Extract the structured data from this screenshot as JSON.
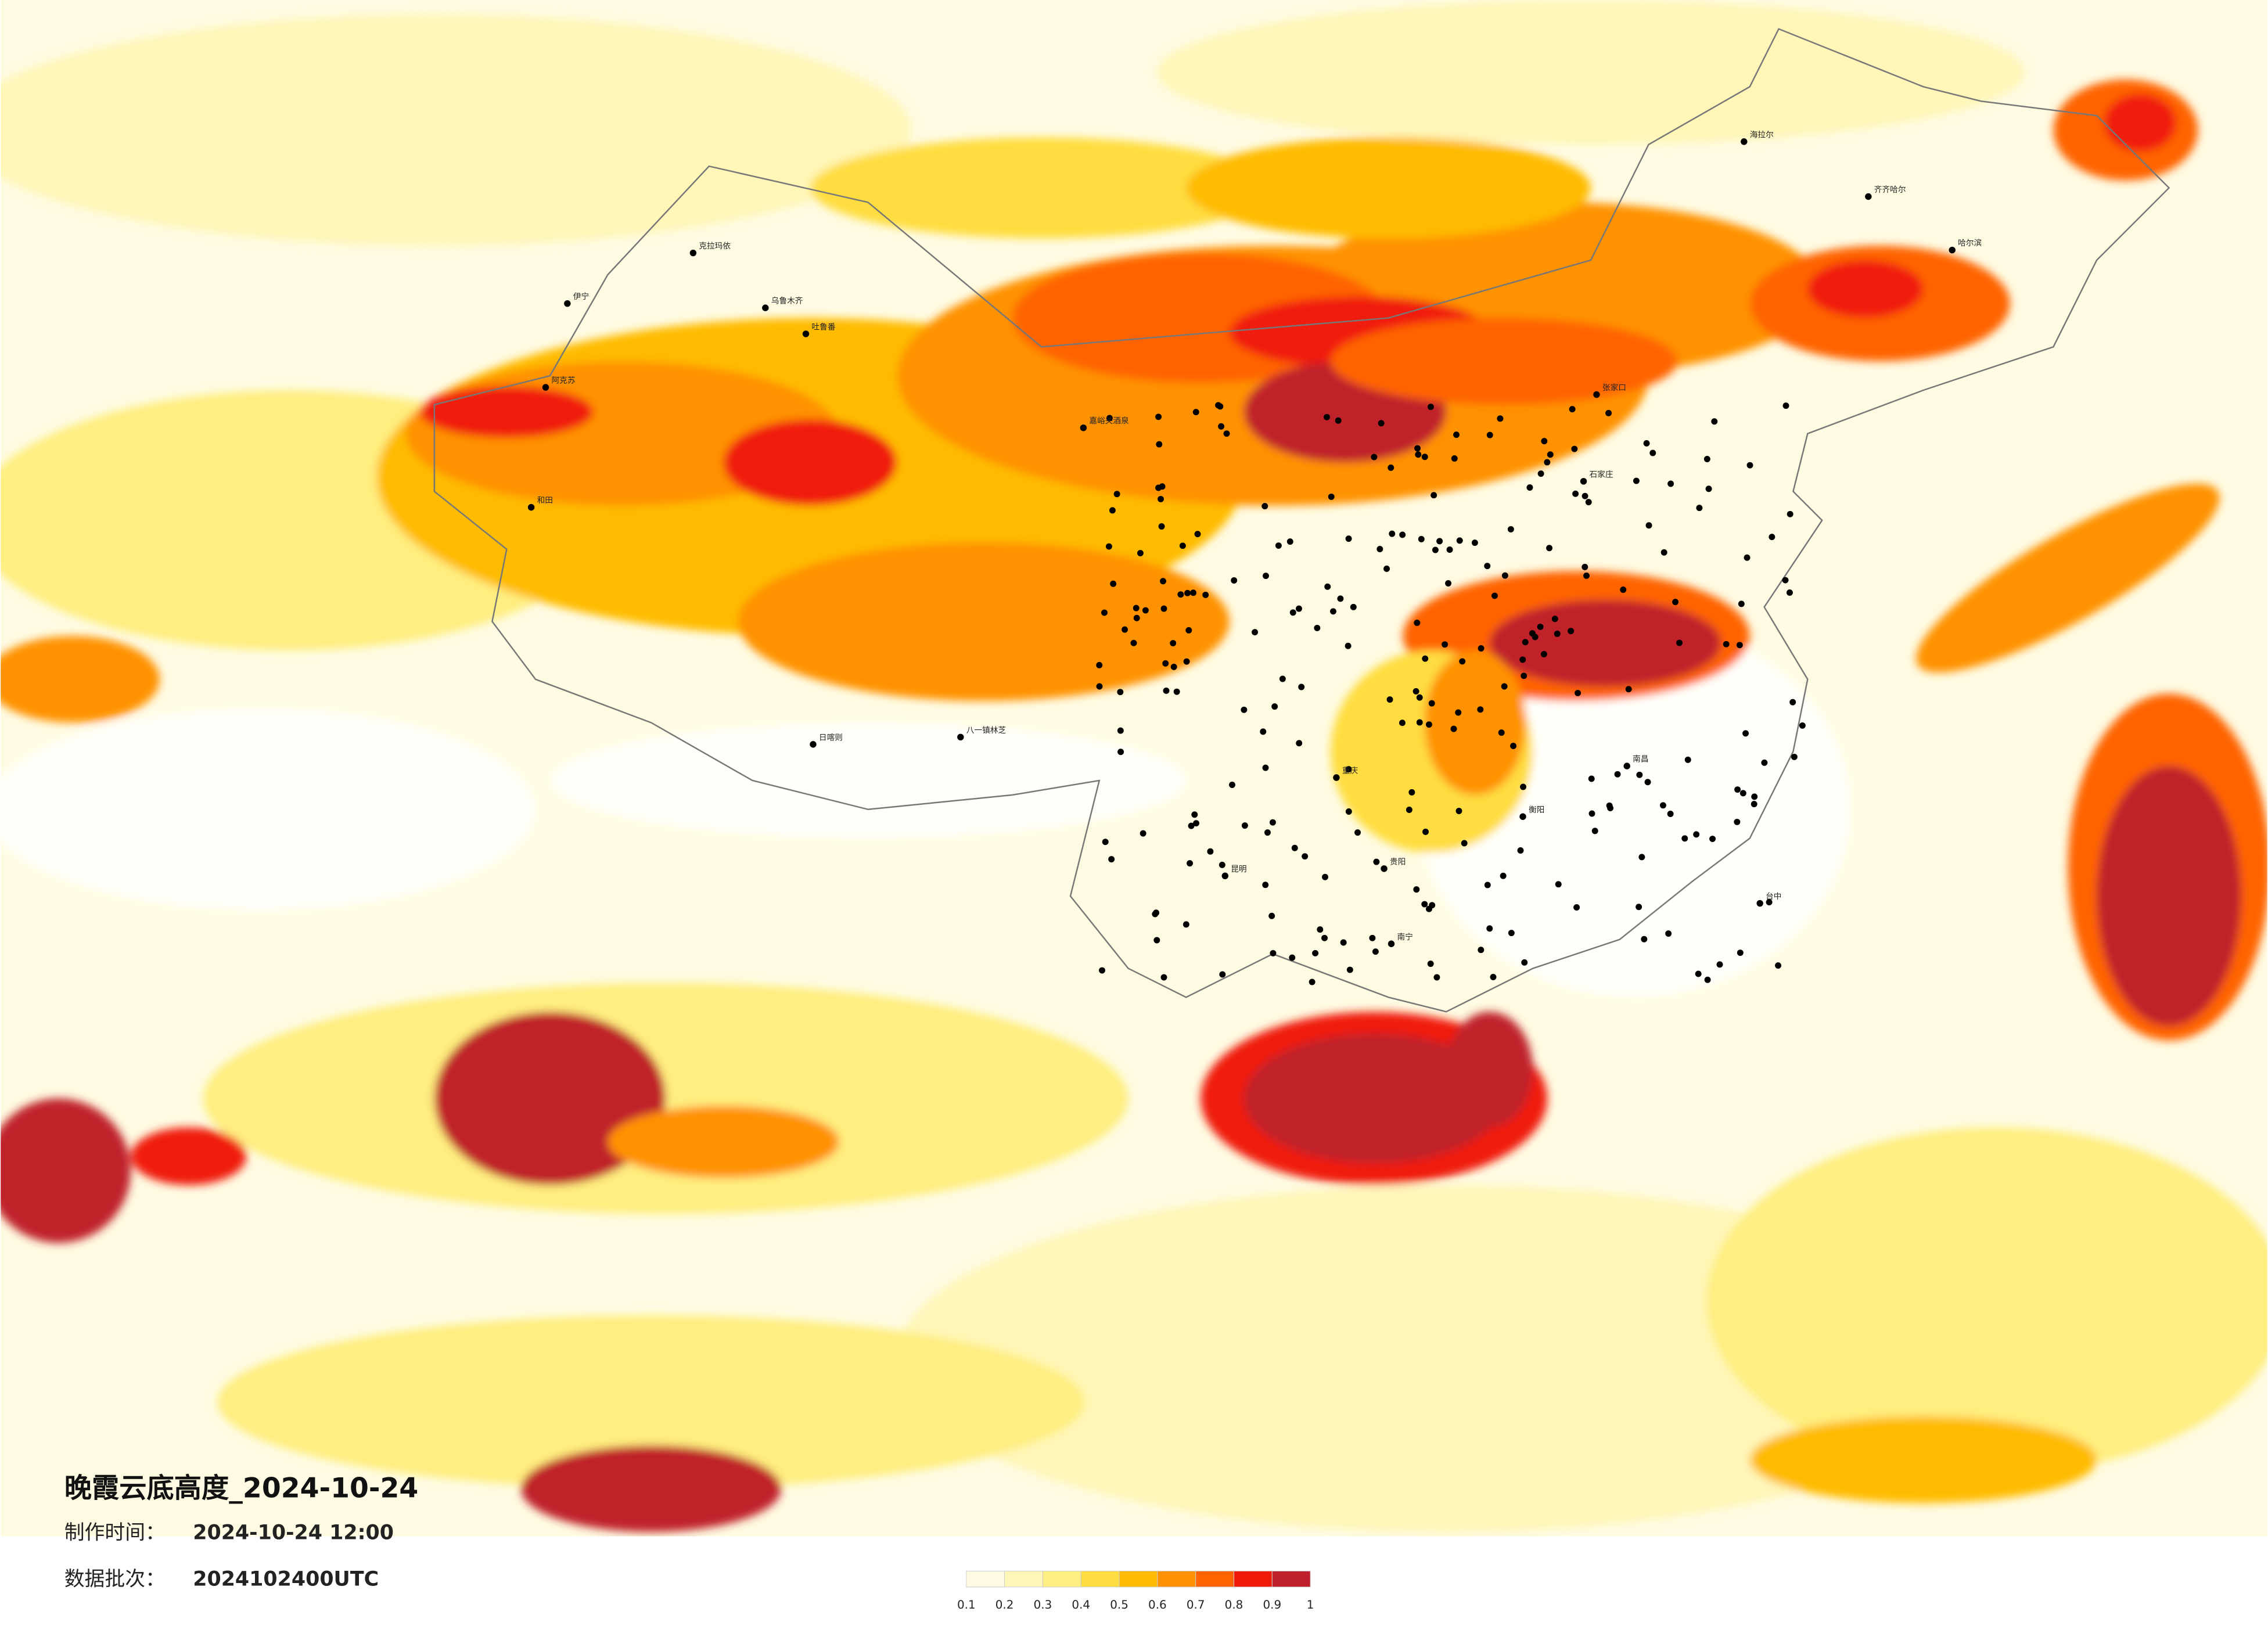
{
  "title": "晚霞云底高度_2024-10-24",
  "made_label": "制作时间：",
  "made_time": "2024-10-24 12:00",
  "batch_label": "数据批次：",
  "batch": "2024102400UTC",
  "legend": {
    "colors": [
      "#fffbe2",
      "#fff6b8",
      "#ffee80",
      "#ffdd40",
      "#ffbb00",
      "#ff9200",
      "#ff6400",
      "#f01a0a",
      "#c0202c"
    ],
    "ticks": [
      0.1,
      0.2,
      0.3,
      0.4,
      0.5,
      0.6,
      0.7,
      0.8,
      0.9,
      1
    ]
  },
  "cities": [
    "克拉玛依",
    "乌鲁木齐",
    "伊宁",
    "阿克苏",
    "和田",
    "吐鲁番",
    "嘉峪关酒泉",
    "日喀则",
    "八一镇林芝",
    "海拉尔",
    "齐齐哈尔",
    "哈尔滨",
    "张家口",
    "石家庄",
    "重庆",
    "贵阳",
    "昆明",
    "南宁",
    "南昌",
    "衡阳",
    "台中"
  ]
}
